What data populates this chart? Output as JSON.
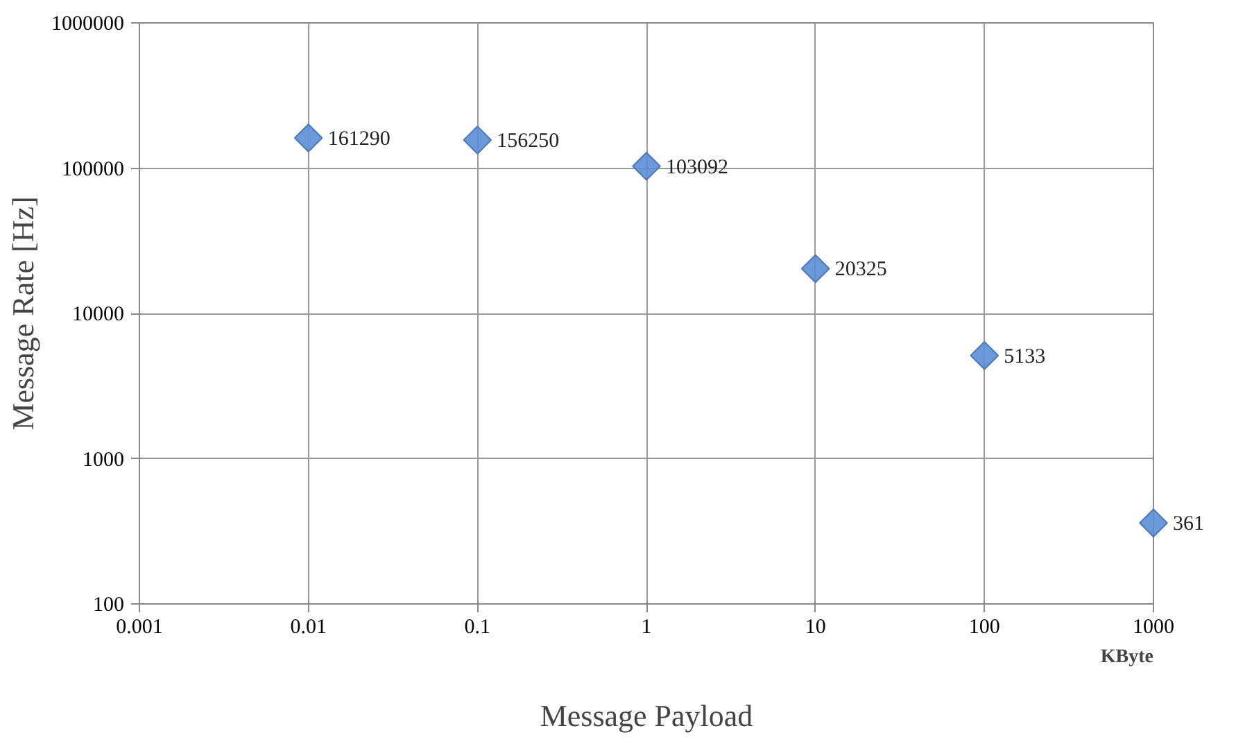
{
  "chart_data": {
    "type": "scatter",
    "xlabel": "Message Payload",
    "ylabel": "Message Rate [Hz]",
    "annotations": [
      "KByte"
    ],
    "x": [
      0.01,
      0.1,
      1,
      10,
      100,
      1000
    ],
    "series": [
      {
        "color": "#5b8fd6",
        "values": [
          161290,
          156250,
          103092,
          20325,
          5133,
          361
        ]
      }
    ],
    "data_labels": true,
    "log": "xy",
    "grid": true,
    "marker": "diamond",
    "xlim": [
      0.001,
      1000
    ],
    "xticks": [
      0.001,
      0.01,
      0.1,
      1,
      10,
      100,
      1000
    ],
    "ylim": [
      100,
      1000000
    ],
    "yticks": [
      100,
      1000,
      10000,
      100000,
      1000000
    ]
  }
}
